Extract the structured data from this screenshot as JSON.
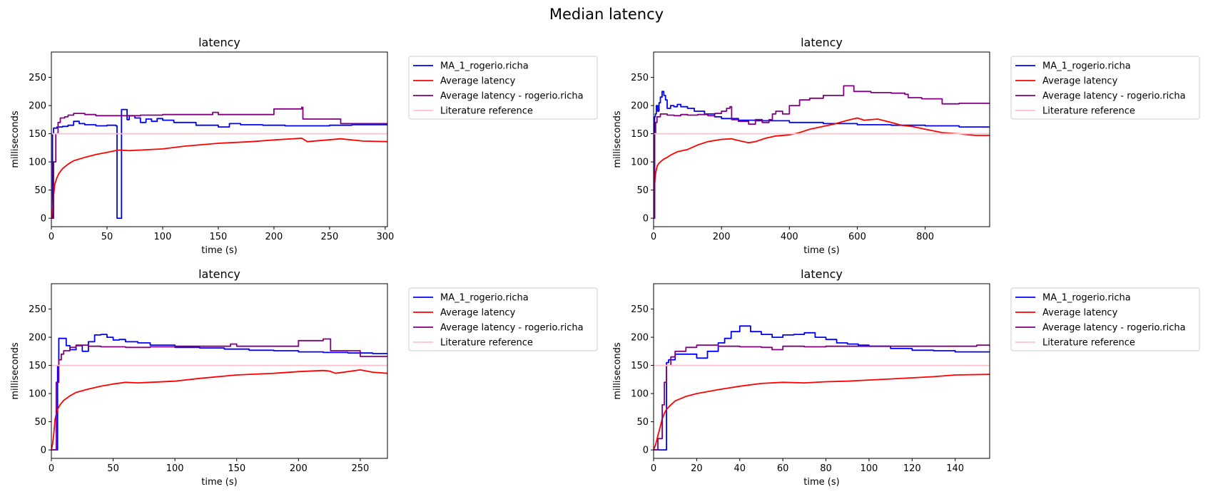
{
  "figure": {
    "title": "Median latency"
  },
  "colors": {
    "ma": "#0000ff",
    "avg": "#ff0000",
    "avg_user": "#800080",
    "lit": "#ffc0cb"
  },
  "legend": {
    "entries": [
      "MA_1_rogerio.richa",
      "Average latency",
      "Average latency - rogerio.richa",
      "Literature reference"
    ],
    "placement": "outside-right"
  },
  "chart_data": [
    {
      "type": "line",
      "title": "latency",
      "xlabel": "time (s)",
      "ylabel": "milliseconds",
      "xlim": [
        0,
        302
      ],
      "ylim": [
        -15,
        295
      ],
      "xticks": [
        0,
        50,
        100,
        150,
        200,
        250,
        300
      ],
      "yticks": [
        0,
        50,
        100,
        150,
        200,
        250
      ],
      "grid": false,
      "series": [
        {
          "name": "MA_1_rogerio.richa",
          "color": "#0000ff",
          "step": true,
          "x": [
            0,
            1,
            2,
            5,
            10,
            15,
            20,
            25,
            30,
            40,
            50,
            58,
            59,
            60,
            62,
            63,
            64,
            68,
            70,
            75,
            80,
            85,
            90,
            95,
            100,
            110,
            130,
            150,
            160,
            170,
            190,
            210,
            230,
            250,
            270,
            290,
            302
          ],
          "y": [
            0,
            150,
            160,
            162,
            163,
            165,
            172,
            168,
            166,
            164,
            165,
            164,
            0,
            0,
            0,
            193,
            193,
            175,
            182,
            178,
            170,
            176,
            172,
            177,
            174,
            170,
            165,
            162,
            168,
            166,
            165,
            164,
            164,
            165,
            166,
            166,
            166
          ]
        },
        {
          "name": "Average latency",
          "color": "#ff0000",
          "x": [
            0,
            1,
            2,
            3,
            5,
            7,
            10,
            15,
            20,
            30,
            40,
            50,
            60,
            70,
            80,
            100,
            120,
            150,
            180,
            200,
            225,
            230,
            260,
            280,
            302
          ],
          "y": [
            0,
            15,
            40,
            60,
            72,
            80,
            88,
            96,
            102,
            108,
            113,
            117,
            121,
            120,
            121,
            123,
            128,
            133,
            136,
            139,
            142,
            136,
            141,
            137,
            136
          ]
        },
        {
          "name": "Average latency - rogerio.richa",
          "color": "#800080",
          "step": true,
          "x": [
            0,
            2,
            4,
            6,
            8,
            12,
            15,
            20,
            30,
            40,
            60,
            80,
            100,
            140,
            145,
            150,
            185,
            200,
            225,
            226,
            250,
            260,
            302
          ],
          "y": [
            0,
            100,
            150,
            170,
            178,
            180,
            183,
            186,
            184,
            182,
            182,
            183,
            184,
            184,
            188,
            184,
            184,
            194,
            197,
            176,
            176,
            168,
            168
          ]
        },
        {
          "name": "Literature reference",
          "color": "#ffc0cb",
          "x": [
            0,
            302
          ],
          "y": [
            150,
            150
          ]
        }
      ]
    },
    {
      "type": "line",
      "title": "latency",
      "xlabel": "time (s)",
      "ylabel": "milliseconds",
      "xlim": [
        0,
        990
      ],
      "ylim": [
        -15,
        295
      ],
      "xticks": [
        0,
        200,
        400,
        600,
        800
      ],
      "yticks": [
        0,
        50,
        100,
        150,
        200,
        250
      ],
      "grid": false,
      "series": [
        {
          "name": "MA_1_rogerio.richa",
          "color": "#0000ff",
          "step": true,
          "x": [
            0,
            3,
            5,
            8,
            12,
            16,
            20,
            25,
            30,
            35,
            40,
            50,
            60,
            70,
            80,
            100,
            120,
            150,
            180,
            200,
            250,
            300,
            400,
            500,
            600,
            700,
            800,
            900,
            990
          ],
          "y": [
            0,
            180,
            185,
            200,
            190,
            205,
            215,
            225,
            218,
            210,
            195,
            200,
            198,
            202,
            198,
            195,
            190,
            185,
            180,
            177,
            174,
            173,
            170,
            168,
            166,
            165,
            164,
            162,
            161
          ]
        },
        {
          "name": "Average latency",
          "color": "#ff0000",
          "x": [
            0,
            3,
            6,
            10,
            15,
            20,
            30,
            40,
            50,
            70,
            100,
            130,
            160,
            200,
            230,
            250,
            280,
            300,
            330,
            360,
            400,
            430,
            460,
            500,
            530,
            560,
            580,
            600,
            620,
            660,
            700,
            730,
            760,
            800,
            850,
            900,
            930,
            950,
            990
          ],
          "y": [
            0,
            60,
            80,
            92,
            97,
            100,
            105,
            108,
            112,
            118,
            122,
            130,
            136,
            140,
            141,
            138,
            134,
            136,
            142,
            146,
            148,
            152,
            158,
            163,
            167,
            172,
            175,
            178,
            174,
            176,
            170,
            165,
            163,
            158,
            152,
            150,
            148,
            147,
            147
          ]
        },
        {
          "name": "Average latency - rogerio.richa",
          "color": "#800080",
          "step": true,
          "x": [
            0,
            3,
            6,
            10,
            20,
            40,
            60,
            80,
            100,
            130,
            160,
            180,
            200,
            215,
            225,
            230,
            250,
            280,
            300,
            320,
            340,
            350,
            360,
            380,
            400,
            430,
            460,
            500,
            520,
            560,
            590,
            640,
            700,
            740,
            750,
            790,
            850,
            900,
            990
          ],
          "y": [
            0,
            150,
            170,
            180,
            185,
            183,
            182,
            184,
            183,
            184,
            182,
            186,
            190,
            195,
            198,
            175,
            172,
            167,
            175,
            170,
            175,
            185,
            190,
            185,
            200,
            210,
            213,
            218,
            218,
            235,
            225,
            223,
            222,
            220,
            214,
            212,
            203,
            204,
            204
          ]
        },
        {
          "name": "Literature reference",
          "color": "#ffc0cb",
          "x": [
            0,
            990
          ],
          "y": [
            150,
            150
          ]
        }
      ]
    },
    {
      "type": "line",
      "title": "latency",
      "xlabel": "time (s)",
      "ylabel": "milliseconds",
      "xlim": [
        0,
        272
      ],
      "ylim": [
        -15,
        295
      ],
      "xticks": [
        0,
        50,
        100,
        150,
        200,
        250
      ],
      "yticks": [
        0,
        50,
        100,
        150,
        200,
        250
      ],
      "grid": false,
      "series": [
        {
          "name": "MA_1_rogerio.richa",
          "color": "#0000ff",
          "step": true,
          "x": [
            0,
            4,
            5,
            6,
            10,
            12,
            15,
            20,
            25,
            30,
            35,
            40,
            45,
            50,
            55,
            60,
            70,
            80,
            100,
            120,
            140,
            160,
            180,
            200,
            220,
            240,
            260,
            272
          ],
          "y": [
            0,
            0,
            150,
            198,
            198,
            185,
            178,
            185,
            175,
            192,
            204,
            205,
            200,
            195,
            196,
            192,
            190,
            186,
            182,
            181,
            179,
            177,
            176,
            174,
            173,
            172,
            171,
            170
          ]
        },
        {
          "name": "Average latency",
          "color": "#ff0000",
          "x": [
            0,
            1,
            2,
            3,
            5,
            7,
            10,
            15,
            20,
            30,
            40,
            50,
            60,
            70,
            80,
            100,
            120,
            150,
            180,
            200,
            220,
            225,
            230,
            250,
            260,
            272
          ],
          "y": [
            0,
            10,
            30,
            55,
            72,
            80,
            88,
            96,
            102,
            108,
            113,
            117,
            120,
            119,
            120,
            122,
            127,
            133,
            136,
            139,
            141,
            140,
            136,
            142,
            138,
            136
          ]
        },
        {
          "name": "Average latency - rogerio.richa",
          "color": "#800080",
          "step": true,
          "x": [
            0,
            4,
            6,
            8,
            10,
            15,
            20,
            30,
            40,
            60,
            80,
            100,
            140,
            145,
            150,
            180,
            200,
            220,
            225,
            226,
            245,
            250,
            272
          ],
          "y": [
            0,
            120,
            160,
            170,
            176,
            182,
            186,
            184,
            183,
            182,
            183,
            184,
            184,
            188,
            184,
            184,
            194,
            197,
            197,
            176,
            176,
            166,
            166
          ]
        },
        {
          "name": "Literature reference",
          "color": "#ffc0cb",
          "x": [
            0,
            272
          ],
          "y": [
            150,
            150
          ]
        }
      ]
    },
    {
      "type": "line",
      "title": "latency",
      "xlabel": "time (s)",
      "ylabel": "milliseconds",
      "xlim": [
        0,
        156
      ],
      "ylim": [
        -15,
        295
      ],
      "xticks": [
        0,
        20,
        40,
        60,
        80,
        100,
        120,
        140
      ],
      "yticks": [
        0,
        50,
        100,
        150,
        200,
        250
      ],
      "grid": false,
      "series": [
        {
          "name": "MA_1_rogerio.richa",
          "color": "#0000ff",
          "step": true,
          "x": [
            0,
            5,
            6,
            7,
            10,
            15,
            20,
            25,
            30,
            33,
            36,
            40,
            45,
            50,
            55,
            60,
            65,
            70,
            75,
            80,
            85,
            90,
            95,
            100,
            110,
            120,
            130,
            140,
            156
          ],
          "y": [
            0,
            0,
            155,
            160,
            170,
            170,
            163,
            175,
            190,
            198,
            210,
            220,
            210,
            205,
            200,
            204,
            205,
            208,
            200,
            196,
            190,
            188,
            186,
            184,
            180,
            177,
            176,
            174,
            174
          ]
        },
        {
          "name": "Average latency",
          "color": "#ff0000",
          "x": [
            0,
            1,
            2,
            3,
            4,
            5,
            6,
            8,
            10,
            15,
            20,
            30,
            40,
            50,
            60,
            70,
            80,
            90,
            100,
            110,
            120,
            130,
            140,
            156
          ],
          "y": [
            0,
            10,
            25,
            40,
            55,
            65,
            72,
            80,
            87,
            95,
            100,
            107,
            113,
            118,
            120,
            119,
            121,
            122,
            124,
            126,
            128,
            130,
            133,
            134
          ]
        },
        {
          "name": "Average latency - rogerio.richa",
          "color": "#800080",
          "step": true,
          "x": [
            0,
            2,
            4,
            5,
            6,
            8,
            10,
            15,
            20,
            30,
            40,
            50,
            55,
            60,
            70,
            80,
            100,
            120,
            140,
            150,
            156
          ],
          "y": [
            0,
            20,
            80,
            120,
            150,
            165,
            175,
            182,
            186,
            184,
            183,
            182,
            178,
            184,
            183,
            184,
            184,
            184,
            184,
            186,
            184
          ]
        },
        {
          "name": "Literature reference",
          "color": "#ffc0cb",
          "x": [
            0,
            156
          ],
          "y": [
            150,
            150
          ]
        }
      ]
    }
  ]
}
